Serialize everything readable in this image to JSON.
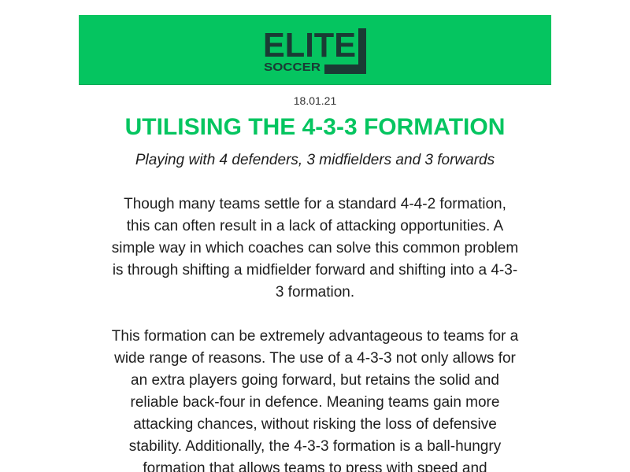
{
  "header": {
    "logo_main": "ELITE",
    "logo_sub": "SOCCER",
    "background_color": "#05c560",
    "logo_color": "#1a3b34"
  },
  "article": {
    "date": "18.01.21",
    "title": "UTILISING THE 4-3-3 FORMATION",
    "subtitle": "Playing with 4 defenders, 3 midfielders and 3 forwards",
    "paragraphs": [
      "Though many teams settle for a standard 4-4-2 formation, this can often result in a lack of attacking opportunities. A simple way in which coaches can solve this common problem is through shifting a midfielder forward and shifting into a 4-3-3 formation.",
      "This formation can be extremely advantageous to teams for a wide range of reasons. The use of a 4-3-3 not only allows for an extra players going forward, but retains the solid and reliable back-four in defence. Meaning teams gain more attacking chances, without risking the loss of defensive stability. Additionally, the 4-3-3 formation is a ball-hungry formation that allows teams to press with speed and"
    ],
    "title_color": "#05c560"
  }
}
